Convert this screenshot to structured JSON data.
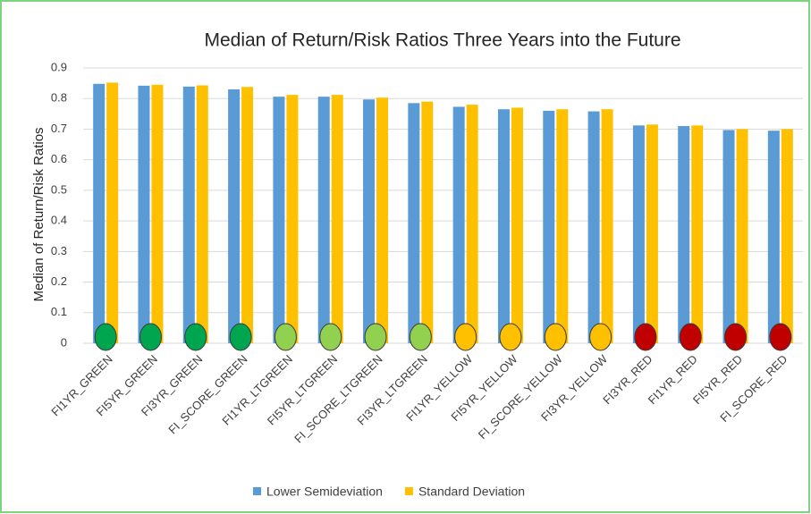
{
  "chart_data": {
    "type": "bar",
    "title": "Median of Return/Risk Ratios Three Years into the Future",
    "ylabel": "Median of Return/Risk Ratios",
    "categories": [
      "FI1YR_GREEN",
      "FI5YR_GREEN",
      "FI3YR_GREEN",
      "FI_SCORE_GREEN",
      "FI1YR_LTGREEN",
      "FI5YR_LTGREEN",
      "FI_SCORE_LTGREEN",
      "FI3YR_LTGREEN",
      "FI1YR_YELLOW",
      "FI5YR_YELLOW",
      "FI_SCORE_YELLOW",
      "FI3YR_YELLOW",
      "FI3YR_RED",
      "FI1YR_RED",
      "FI5YR_RED",
      "FI_SCORE_RED"
    ],
    "category_colors": [
      "#00a550",
      "#00a550",
      "#00a550",
      "#00a550",
      "#92d050",
      "#92d050",
      "#92d050",
      "#92d050",
      "#ffc000",
      "#ffc000",
      "#ffc000",
      "#ffc000",
      "#c00000",
      "#c00000",
      "#c00000",
      "#c00000"
    ],
    "series": [
      {
        "name": "Lower Semideviation",
        "color": "#5b9bd5",
        "values": [
          0.848,
          0.842,
          0.839,
          0.83,
          0.806,
          0.806,
          0.797,
          0.785,
          0.773,
          0.765,
          0.76,
          0.758,
          0.712,
          0.71,
          0.697,
          0.695
        ]
      },
      {
        "name": "Standard Deviation",
        "color": "#ffc000",
        "values": [
          0.852,
          0.845,
          0.843,
          0.838,
          0.812,
          0.812,
          0.803,
          0.79,
          0.78,
          0.77,
          0.765,
          0.765,
          0.715,
          0.712,
          0.7,
          0.7
        ]
      }
    ],
    "ylim": [
      0,
      0.9
    ],
    "yticks": [
      0,
      0.1,
      0.2,
      0.3,
      0.4,
      0.5,
      0.6,
      0.7,
      0.8,
      0.9
    ],
    "grid": true,
    "legend": "bottom"
  }
}
